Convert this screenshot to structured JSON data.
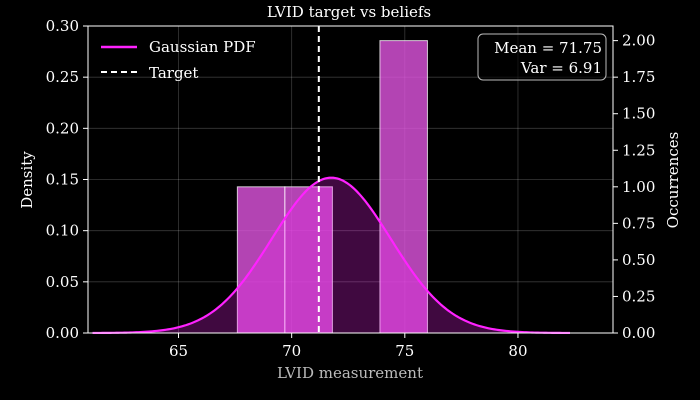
{
  "chart_data": {
    "type": "bar",
    "title": "LVID target vs beliefs",
    "xlabel": "LVID measurement",
    "ylabel": "Density",
    "ylabel_right": "Occurrences",
    "xlim": [
      61,
      84.2
    ],
    "ylim": [
      0,
      0.3
    ],
    "ylim_right": [
      0,
      2.1
    ],
    "x_ticks": [
      65,
      70,
      75,
      80
    ],
    "y_ticks": [
      0.0,
      0.05,
      0.1,
      0.15,
      0.2,
      0.25,
      0.3
    ],
    "y_tick_labels": [
      "0.00",
      "0.05",
      "0.10",
      "0.15",
      "0.20",
      "0.25",
      "0.30"
    ],
    "y_ticks_right": [
      0.0,
      0.25,
      0.5,
      0.75,
      1.0,
      1.25,
      1.5,
      1.75,
      2.0
    ],
    "y_tick_labels_right": [
      "0.00",
      "0.25",
      "0.50",
      "0.75",
      "1.00",
      "1.25",
      "1.50",
      "1.75",
      "2.00"
    ],
    "grid": true,
    "histogram": {
      "bins": [
        {
          "x0": 67.6,
          "x1": 69.7,
          "count": 1
        },
        {
          "x0": 69.7,
          "x1": 71.8,
          "count": 1
        },
        {
          "x0": 73.9,
          "x1": 76.0,
          "count": 2
        }
      ],
      "color": "#e055e0"
    },
    "gaussian": {
      "name": "Gaussian PDF",
      "mean": 71.75,
      "variance": 6.91,
      "x_range": [
        61.2,
        82.3
      ],
      "color": "#ff22ff"
    },
    "target": {
      "name": "Target",
      "x": 71.2,
      "color": "#ffffff"
    },
    "legend_position": "top-left",
    "stats_box": {
      "line1": "Mean = 71.75",
      "line2": "Var = 6.91",
      "position": "top-right"
    }
  }
}
